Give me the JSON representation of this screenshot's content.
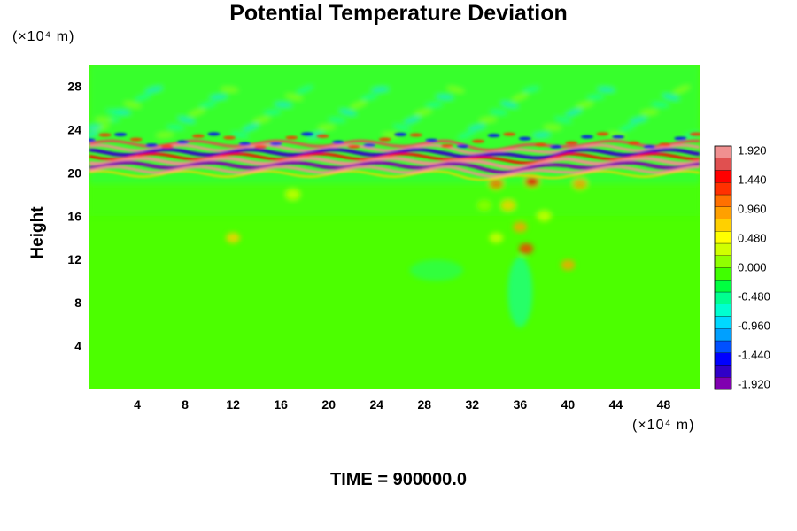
{
  "chart_data": {
    "type": "heatmap",
    "title": "Potential Temperature Deviation",
    "ylabel": "Height",
    "y_unit": "(×10⁴ m)",
    "x_unit": "(×10⁴ m)",
    "x_ticks": [
      "4",
      "8",
      "12",
      "16",
      "20",
      "24",
      "28",
      "32",
      "36",
      "40",
      "44",
      "48"
    ],
    "y_ticks": [
      "4",
      "8",
      "12",
      "16",
      "20",
      "24",
      "28"
    ],
    "xlim": [
      0,
      51
    ],
    "ylim": [
      0,
      30
    ],
    "time_label": "TIME = 900000.0",
    "colorbar": {
      "labels": [
        "1.920",
        "1.440",
        "0.960",
        "0.480",
        "0.000",
        "-0.480",
        "-0.960",
        "-1.440",
        "-1.920"
      ],
      "range": [
        -2.0,
        2.0
      ],
      "colors": [
        "#8000b0",
        "#3000c8",
        "#0000ff",
        "#0050ff",
        "#00a0ff",
        "#00d8ff",
        "#00ffd0",
        "#00ff90",
        "#00ff40",
        "#40ff00",
        "#90ff00",
        "#d0ff00",
        "#ffff00",
        "#ffd000",
        "#ffa000",
        "#ff7000",
        "#ff3000",
        "#ff0000",
        "#e05050",
        "#f09090"
      ]
    },
    "background_color": "#4cff00",
    "features": [
      {
        "name": "tropopause-band",
        "y": [
          19.5,
          23
        ],
        "values": "strong oscillating -1.92 to 1.92"
      },
      {
        "name": "gravity-waves",
        "y": [
          23,
          28
        ],
        "values": "weak -0.5 to 0.5"
      },
      {
        "name": "convective-plume",
        "x": [
          33,
          41
        ],
        "y": [
          8,
          20
        ],
        "values": "0.5 to 1.4"
      }
    ]
  }
}
